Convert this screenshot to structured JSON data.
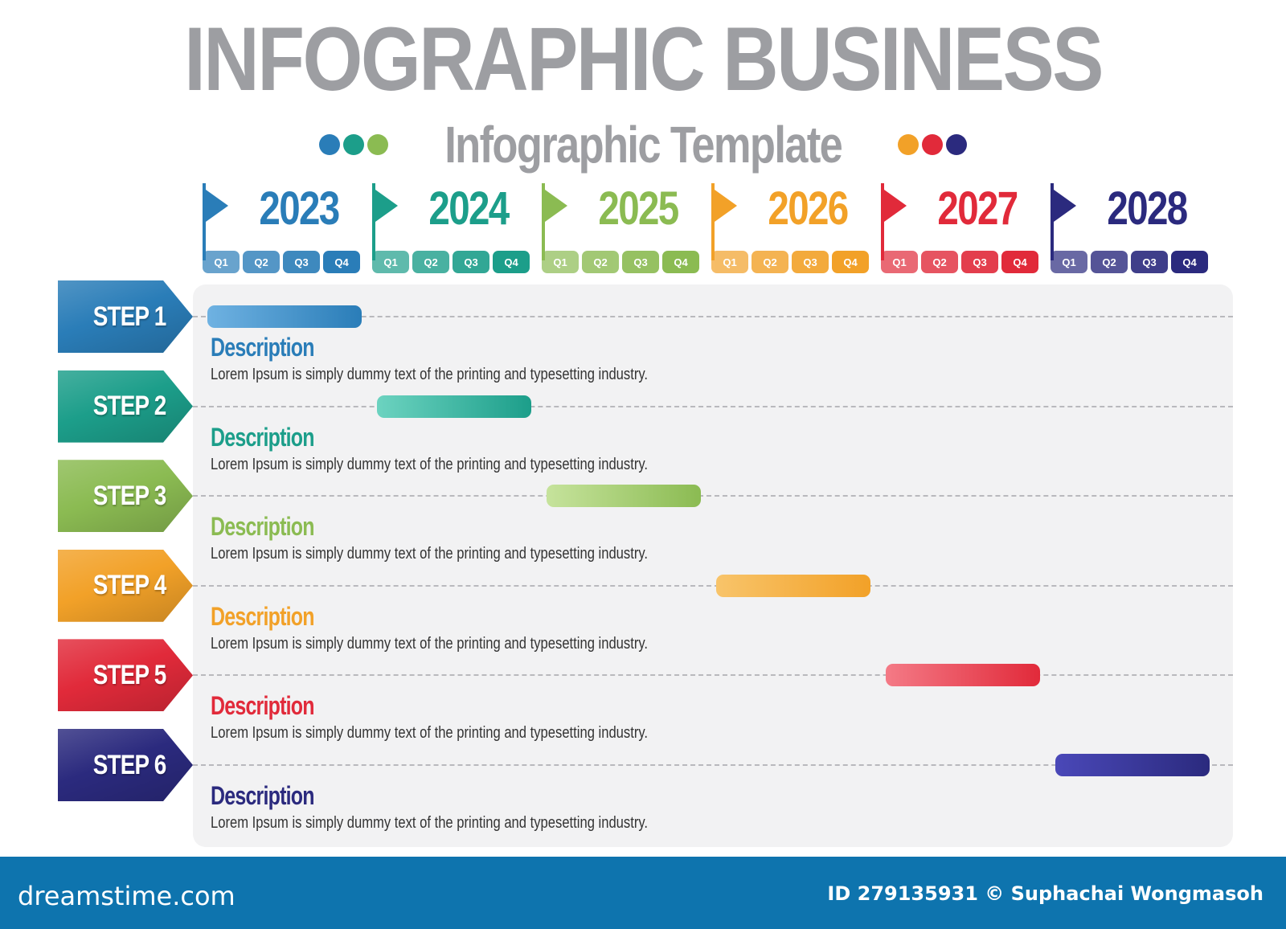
{
  "title": "INFOGRAPHIC BUSINESS",
  "subtitle": "Infographic Template",
  "colors": {
    "blue": "#2a7db8",
    "teal": "#1c9e8a",
    "green": "#8bbb52",
    "orange": "#f2a128",
    "red": "#e12a3a",
    "navy": "#2b2a7e"
  },
  "years": [
    {
      "label": "2023",
      "color": "#2a7db8",
      "quarters": [
        "Q1",
        "Q2",
        "Q3",
        "Q4"
      ]
    },
    {
      "label": "2024",
      "color": "#1c9e8a",
      "quarters": [
        "Q1",
        "Q2",
        "Q3",
        "Q4"
      ]
    },
    {
      "label": "2025",
      "color": "#8bbb52",
      "quarters": [
        "Q1",
        "Q2",
        "Q3",
        "Q4"
      ]
    },
    {
      "label": "2026",
      "color": "#f2a128",
      "quarters": [
        "Q1",
        "Q2",
        "Q3",
        "Q4"
      ]
    },
    {
      "label": "2027",
      "color": "#e12a3a",
      "quarters": [
        "Q1",
        "Q2",
        "Q3",
        "Q4"
      ]
    },
    {
      "label": "2028",
      "color": "#2b2a7e",
      "quarters": [
        "Q1",
        "Q2",
        "Q3",
        "Q4"
      ]
    }
  ],
  "steps": [
    {
      "label": "STEP 1",
      "year": "2023",
      "title": "Description",
      "text": "Lorem Ipsum is simply dummy text of the printing and typesetting industry.",
      "color": "#2a7db8",
      "bar_start": "#6fb2e2"
    },
    {
      "label": "STEP 2",
      "year": "2024",
      "title": "Description",
      "text": "Lorem Ipsum is simply dummy text of the printing and typesetting industry.",
      "color": "#1c9e8a",
      "bar_start": "#6cd3c0"
    },
    {
      "label": "STEP 3",
      "year": "2025",
      "title": "Description",
      "text": "Lorem Ipsum is simply dummy text of the printing and typesetting industry.",
      "color": "#8bbb52",
      "bar_start": "#c6e39c"
    },
    {
      "label": "STEP 4",
      "year": "2026",
      "title": "Description",
      "text": "Lorem Ipsum is simply dummy text of the printing and typesetting industry.",
      "color": "#f2a128",
      "bar_start": "#f8c46a"
    },
    {
      "label": "STEP 5",
      "year": "2027",
      "title": "Description",
      "text": "Lorem Ipsum is simply dummy text of the printing and typesetting industry.",
      "color": "#e12a3a",
      "bar_start": "#f47a86"
    },
    {
      "label": "STEP 6",
      "year": "2028",
      "title": "Description",
      "text": "Lorem Ipsum is simply dummy text of the printing and typesetting industry.",
      "color": "#2b2a7e",
      "bar_start": "#4a48b8"
    }
  ],
  "footer": {
    "brand": "dreamstime.com",
    "credit": "ID 279135931 © Suphachai Wongmasoh"
  }
}
